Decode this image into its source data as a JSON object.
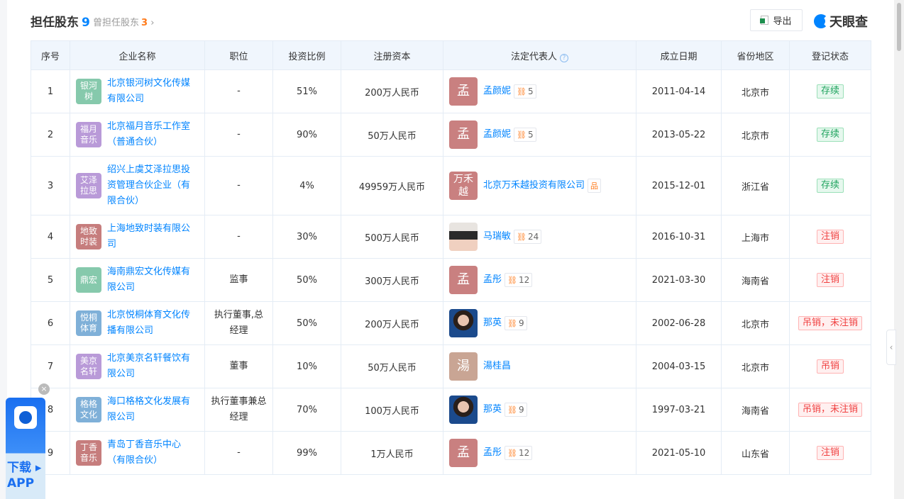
{
  "header": {
    "title": "担任股东",
    "count": "9",
    "former_label": "曾担任股东",
    "former_count": "3",
    "export_label": "导出",
    "brand": "天眼查"
  },
  "columns": [
    "序号",
    "企业名称",
    "职位",
    "投资比例",
    "注册资本",
    "法定代表人",
    "成立日期",
    "省份地区",
    "登记状态"
  ],
  "rows": [
    {
      "no": "1",
      "logo": "银河树",
      "logo_color": "#86c9ac",
      "name": "北京银河树文化传媒有限公司",
      "position": "-",
      "ratio": "51%",
      "capital": "200万人民币",
      "rep_avatar": "孟",
      "rep_color": "#c98080",
      "rep": "孟颜妮",
      "rep_count": "5",
      "date": "2011-04-14",
      "region": "北京市",
      "status": "存续",
      "status_type": "ok"
    },
    {
      "no": "2",
      "logo": "福月音乐",
      "logo_color": "#b99ad8",
      "name": "北京福月音乐工作室（普通合伙）",
      "position": "-",
      "ratio": "90%",
      "capital": "50万人民币",
      "rep_avatar": "孟",
      "rep_color": "#c98080",
      "rep": "孟颜妮",
      "rep_count": "5",
      "date": "2013-05-22",
      "region": "北京市",
      "status": "存续",
      "status_type": "ok"
    },
    {
      "no": "3",
      "logo": "艾泽拉思",
      "logo_color": "#b99ad8",
      "name": "绍兴上虞艾泽拉思投资管理合伙企业（有限合伙）",
      "position": "-",
      "ratio": "4%",
      "capital": "49959万人民币",
      "rep_avatar": "万禾越",
      "rep_color": "#c98080",
      "rep": "北京万禾越投资有限公司",
      "rep_count": "",
      "date": "2015-12-01",
      "region": "浙江省",
      "status": "存续",
      "status_type": "ok"
    },
    {
      "no": "4",
      "logo": "地致时装",
      "logo_color": "#c67d7d",
      "name": "上海地致时装有限公司",
      "position": "-",
      "ratio": "30%",
      "capital": "500万人民币",
      "rep_avatar": "",
      "rep_color": "",
      "rep": "马瑞敏",
      "rep_count": "24",
      "date": "2016-10-31",
      "region": "上海市",
      "status": "注销",
      "status_type": "bad"
    },
    {
      "no": "5",
      "logo": "鼎宏",
      "logo_color": "#86c9ac",
      "name": "海南鼎宏文化传媒有限公司",
      "position": "监事",
      "ratio": "50%",
      "capital": "300万人民币",
      "rep_avatar": "孟",
      "rep_color": "#c98080",
      "rep": "孟彤",
      "rep_count": "12",
      "date": "2021-03-30",
      "region": "海南省",
      "status": "注销",
      "status_type": "bad"
    },
    {
      "no": "6",
      "logo": "悦桐体育",
      "logo_color": "#7fb0d8",
      "name": "北京悦桐体育文化传播有限公司",
      "position": "执行董事,总经理",
      "ratio": "50%",
      "capital": "200万人民币",
      "rep_avatar": "",
      "rep_color": "",
      "rep": "那英",
      "rep_count": "9",
      "date": "2002-06-28",
      "region": "北京市",
      "status": "吊销，未注销",
      "status_type": "bad"
    },
    {
      "no": "7",
      "logo": "美京名轩",
      "logo_color": "#b99ad8",
      "name": "北京美京名轩餐饮有限公司",
      "position": "董事",
      "ratio": "10%",
      "capital": "50万人民币",
      "rep_avatar": "湯",
      "rep_color": "#c9a594",
      "rep": "湯桂昌",
      "rep_count": "",
      "date": "2004-03-15",
      "region": "北京市",
      "status": "吊销",
      "status_type": "bad"
    },
    {
      "no": "8",
      "logo": "格格文化",
      "logo_color": "#7fb0d8",
      "name": "海口格格文化发展有限公司",
      "position": "执行董事兼总经理",
      "ratio": "70%",
      "capital": "100万人民币",
      "rep_avatar": "",
      "rep_color": "",
      "rep": "那英",
      "rep_count": "9",
      "date": "1997-03-21",
      "region": "海南省",
      "status": "吊销，未注销",
      "status_type": "bad"
    },
    {
      "no": "9",
      "logo": "丁香音乐",
      "logo_color": "#c67d7d",
      "name": "青岛丁香音乐中心（有限合伙）",
      "position": "-",
      "ratio": "99%",
      "capital": "1万人民币",
      "rep_avatar": "孟",
      "rep_color": "#c98080",
      "rep": "孟彤",
      "rep_count": "12",
      "date": "2021-05-10",
      "region": "山东省",
      "status": "注销",
      "status_type": "bad"
    }
  ],
  "app_promo": {
    "label": "下载",
    "label2": "APP"
  }
}
